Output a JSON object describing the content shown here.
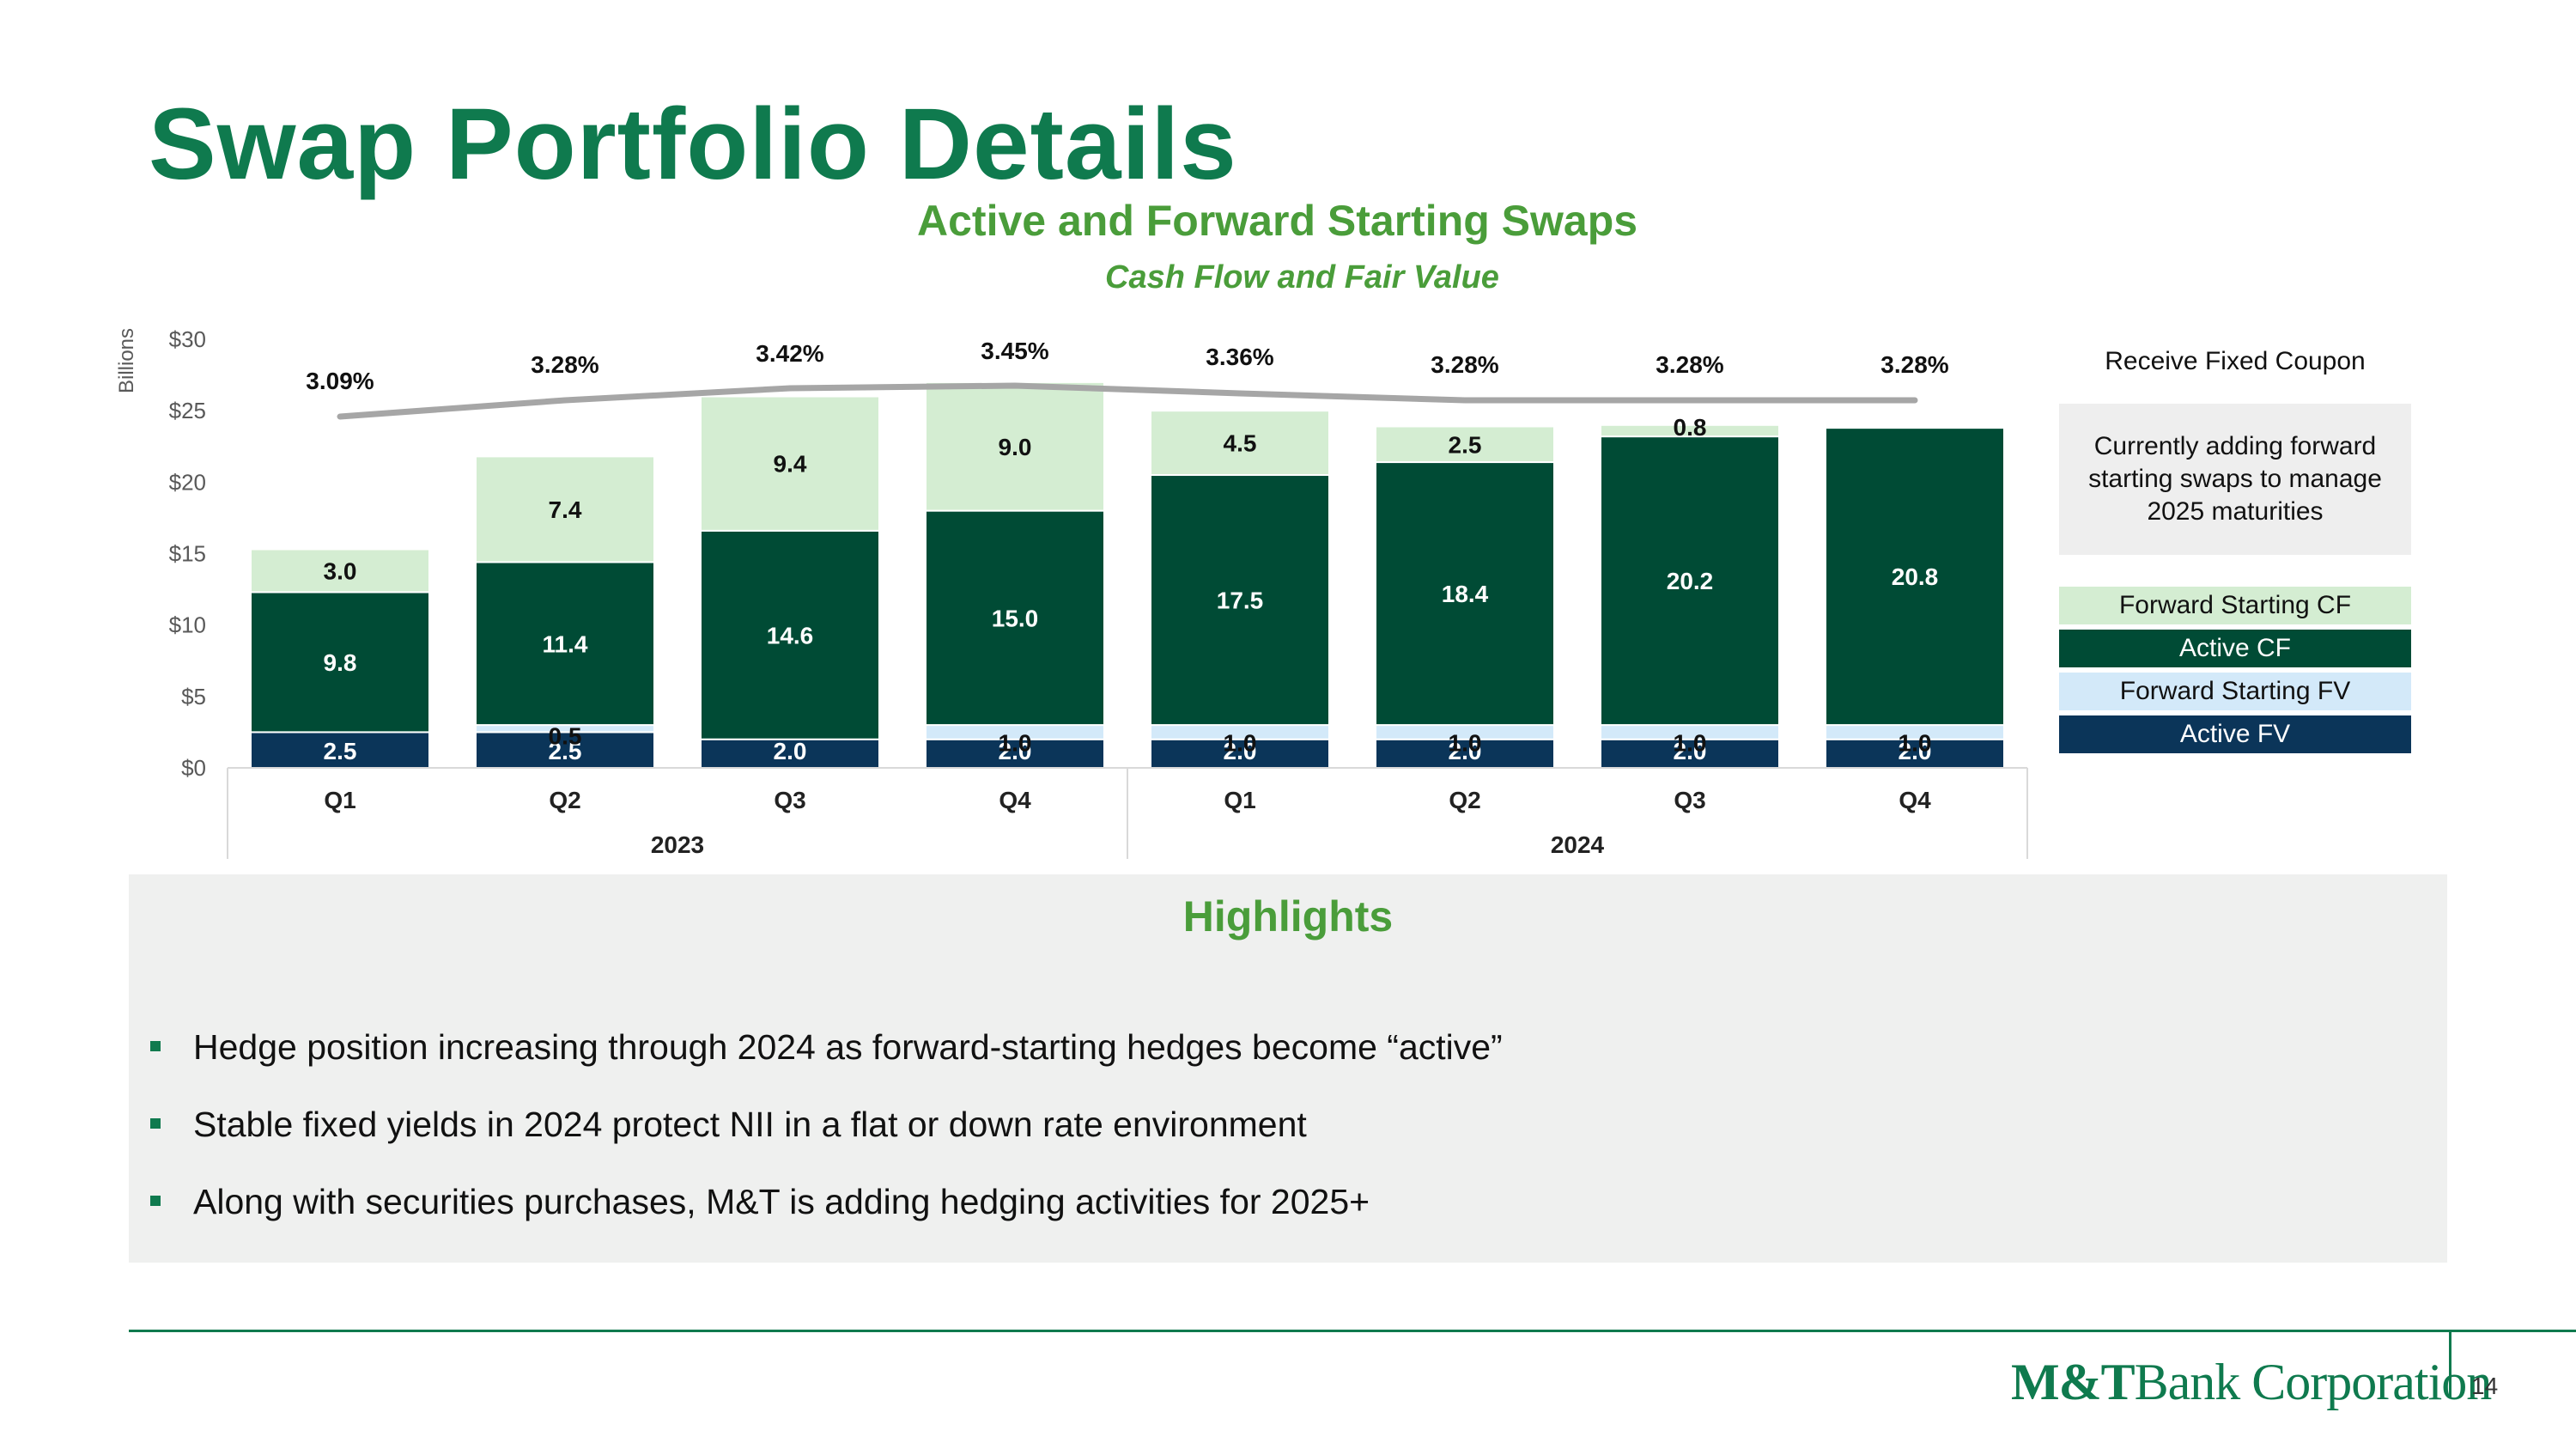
{
  "header": {
    "title": "Swap Portfolio Details",
    "chart_title": "Active and Forward Starting Swaps",
    "chart_subtitle": "Cash Flow and Fair Value"
  },
  "chart_data": {
    "type": "bar",
    "stacked": true,
    "ylabel": "Billions",
    "ylim": [
      0,
      30
    ],
    "yticks": [
      "$0",
      "$5",
      "$10",
      "$15",
      "$20",
      "$25",
      "$30"
    ],
    "categories": [
      "Q1",
      "Q2",
      "Q3",
      "Q4",
      "Q1",
      "Q2",
      "Q3",
      "Q4"
    ],
    "years": [
      {
        "label": "2023",
        "quarters": 4
      },
      {
        "label": "2024",
        "quarters": 4
      }
    ],
    "series": [
      {
        "name": "Active FV",
        "color": "#0b3559",
        "values": [
          2.5,
          2.5,
          2.0,
          2.0,
          2.0,
          2.0,
          2.0,
          2.0
        ],
        "labels": [
          "2.5",
          "2.5",
          "2.0",
          "2.0",
          "2.0",
          "2.0",
          "2.0",
          "2.0"
        ]
      },
      {
        "name": "Forward Starting FV",
        "color": "#d3e9f9",
        "values": [
          0,
          0.5,
          0,
          1.0,
          1.0,
          1.0,
          1.0,
          1.0
        ],
        "labels": [
          "",
          "0.5",
          "",
          "1.0",
          "1.0",
          "1.0",
          "1.0",
          "1.0"
        ]
      },
      {
        "name": "Active CF",
        "color": "#004b35",
        "values": [
          9.8,
          11.4,
          14.6,
          15.0,
          17.5,
          18.4,
          20.2,
          20.8
        ],
        "labels": [
          "9.8",
          "11.4",
          "14.6",
          "15.0",
          "17.5",
          "18.4",
          "20.2",
          "20.8"
        ]
      },
      {
        "name": "Forward Starting CF",
        "color": "#d4edd2",
        "values": [
          3.0,
          7.4,
          9.4,
          9.0,
          4.5,
          2.5,
          0.8,
          0
        ],
        "labels": [
          "3.0",
          "7.4",
          "9.4",
          "9.0",
          "4.5",
          "2.5",
          "0.8",
          ""
        ]
      }
    ],
    "coupon_line": {
      "name": "Receive Fixed Coupon",
      "color": "#a6a6a6",
      "values": [
        3.09,
        3.28,
        3.42,
        3.45,
        3.36,
        3.28,
        3.28,
        3.28
      ],
      "labels": [
        "3.09%",
        "3.28%",
        "3.42%",
        "3.45%",
        "3.36%",
        "3.28%",
        "3.28%",
        "3.28%"
      ]
    }
  },
  "side_panel": {
    "receive_label": "Receive Fixed Coupon",
    "note": "Currently adding forward starting swaps to manage 2025 maturities"
  },
  "legend": [
    {
      "label": "Forward Starting CF",
      "color": "#d4edd2",
      "text_color": "#111111"
    },
    {
      "label": "Active CF",
      "color": "#004b35",
      "text_color": "#ffffff"
    },
    {
      "label": "Forward Starting FV",
      "color": "#d3e9f9",
      "text_color": "#111111"
    },
    {
      "label": "Active FV",
      "color": "#0b3559",
      "text_color": "#ffffff"
    }
  ],
  "highlights": {
    "title": "Highlights",
    "bullets": [
      "Hedge position increasing through 2024 as forward-starting hedges become “active”",
      "Stable fixed yields in 2024 protect NII in a flat or down rate environment",
      "Along with securities purchases, M&T is adding hedging activities for 2025+"
    ]
  },
  "footer": {
    "logo_bold": "M&T",
    "logo_rest": "Bank Corporation",
    "page_number": "14"
  }
}
